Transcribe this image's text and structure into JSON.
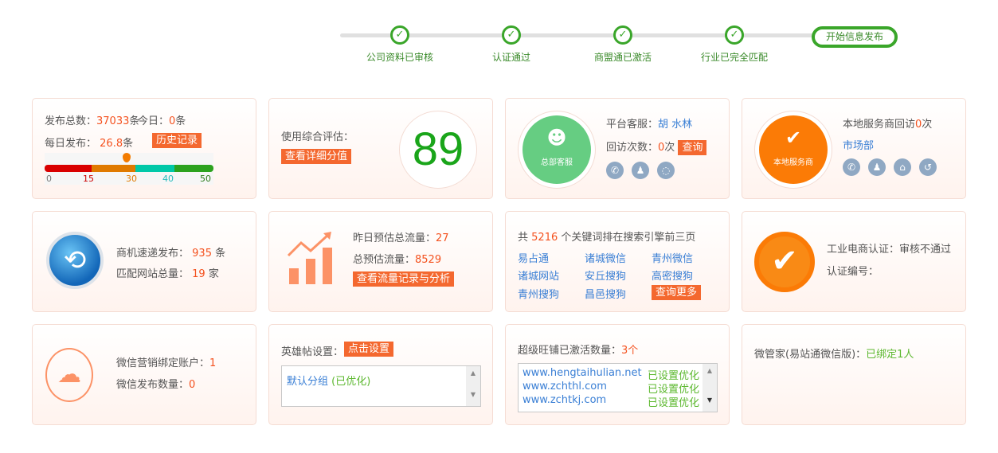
{
  "steps": {
    "items": [
      "公司资料已审核",
      "认证通过",
      "商盟通已激活",
      "行业已完全匹配"
    ],
    "final": "开始信息发布",
    "color": "#3aa62a"
  },
  "publish": {
    "total_label": "发布总数：",
    "total": "37033",
    "unit": "条",
    "today_label": "今日：",
    "today": "0",
    "daily_label": "每日发布：",
    "daily": "26.8",
    "history_btn": "历史记录",
    "scale": [
      "0",
      "15",
      "30",
      "40",
      "50"
    ],
    "gauge_value": 26.8
  },
  "score": {
    "label": "使用综合评估：",
    "btn": "查看详细分值",
    "value": "89"
  },
  "hq": {
    "badge": "总部客服",
    "label": "平台客服：",
    "name": "胡 水林",
    "visits_label": "回访次数：",
    "visits": "0",
    "visits_unit": "次",
    "query_btn": "查询",
    "icons": [
      "phone-icon",
      "qq-icon",
      "chat-icon"
    ]
  },
  "local": {
    "badge": "本地服务商",
    "label_pre": "本地服务商回访",
    "count": "0",
    "label_post": "次",
    "dept": "市场部",
    "icons": [
      "phone-icon",
      "qq-icon",
      "home-icon",
      "history-icon"
    ]
  },
  "biz": {
    "pub_label": "商机速递发布：",
    "pub": "935",
    "pub_unit": "条",
    "sites_label": "匹配网站总量：",
    "sites": "19",
    "sites_unit": "家"
  },
  "traffic": {
    "y_label": "昨日预估总流量：",
    "y": "27",
    "total_label": "总预估流量：",
    "total": "8529",
    "btn": "查看流量记录与分析"
  },
  "keywords": {
    "pre": "共",
    "count": "5216",
    "post": "个关键词排在搜索引擎前三页",
    "items": [
      "易占通",
      "诸城微信",
      "青州微信",
      "诸城网站",
      "安丘搜狗",
      "高密搜狗",
      "青州搜狗",
      "昌邑搜狗"
    ],
    "more_btn": "查询更多"
  },
  "cert": {
    "label": "工业电商认证：",
    "status": "审核不通过",
    "no_label": "认证编号："
  },
  "wechat": {
    "acct_label": "微信营销绑定账户：",
    "acct": "1",
    "pub_label": "微信发布数量：",
    "pub": "0"
  },
  "hero": {
    "label": "英雄帖设置：",
    "btn": "点击设置",
    "group": "默认分组",
    "group_status": "(已优化)"
  },
  "shops": {
    "label": "超级旺铺已激活数量：",
    "count": "3个",
    "rows": [
      {
        "url": "www.hengtaihulian.net",
        "status": "已设置优化"
      },
      {
        "url": "www.zchthl.com",
        "status": "已设置优化"
      },
      {
        "url": "www.zchtkj.com",
        "status": "已设置优化"
      }
    ]
  },
  "wx_mgr": {
    "label": "微管家(易站通微信版)：",
    "status": "已绑定1人"
  }
}
